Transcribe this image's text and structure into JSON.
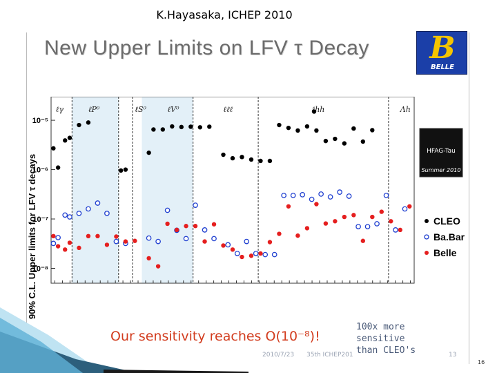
{
  "header": {
    "text": "K.Hayasaka, ICHEP 2010"
  },
  "slide": {
    "title": "New Upper Limits on LFV τ Decay",
    "sensitivity_text": "Our sensitivity reaches O(10⁻⁸)!",
    "note_lines": [
      "100x more",
      "sensitive",
      "than CLEO's"
    ],
    "footer_date": "2010/7/23",
    "footer_conf": "35th ICHEP201",
    "footer_num": "13",
    "page_number": "16"
  },
  "logo": {
    "glyph": "B",
    "name": "BELLE"
  },
  "chart_data": {
    "type": "scatter",
    "ylabel": "90% C.L. Upper limits for LFV τ decays",
    "yscale": "log",
    "ylim": [
      5e-09,
      3e-05
    ],
    "yticks": [
      {
        "value": 1e-05,
        "label": "10⁻⁵"
      },
      {
        "value": 1e-06,
        "label": "10⁻⁶"
      },
      {
        "value": 1e-07,
        "label": "10⁻⁷"
      },
      {
        "value": 1e-08,
        "label": "10⁻⁸"
      }
    ],
    "n_channels": 48,
    "group_labels": [
      {
        "label": "ℓγ",
        "channel": 1
      },
      {
        "label": "ℓP⁰",
        "channel": 8
      },
      {
        "label": "ℓS⁰",
        "channel": 18
      },
      {
        "label": "ℓV⁰",
        "channel": 25
      },
      {
        "label": "ℓℓℓ",
        "channel": 37
      },
      {
        "label": "ℓhh",
        "channel": 56
      },
      {
        "label": "Λh",
        "channel": 75
      }
    ],
    "channel_span": [
      0,
      78
    ],
    "group_dividers": [
      4.5,
      14.5,
      17.5,
      30.5,
      44.5,
      72.5
    ],
    "shaded_ranges": [
      [
        4.5,
        14.5
      ],
      [
        19.5,
        30.5
      ]
    ],
    "series": [
      {
        "name": "CLEO",
        "marker": "filled-black",
        "points": [
          [
            0.5,
            2.7e-06
          ],
          [
            1.5,
            1.1e-06
          ],
          [
            3,
            3.9e-06
          ],
          [
            4,
            4.4e-06
          ],
          [
            6,
            8e-06
          ],
          [
            8,
            9e-06
          ],
          [
            15,
            9.6e-07
          ],
          [
            16,
            1e-06
          ],
          [
            21,
            2.2e-06
          ],
          [
            22,
            6.5e-06
          ],
          [
            24,
            6.5e-06
          ],
          [
            26,
            7.5e-06
          ],
          [
            28,
            7.3e-06
          ],
          [
            30,
            7.4e-06
          ],
          [
            32,
            7.2e-06
          ],
          [
            34,
            7.4e-06
          ],
          [
            37,
            2e-06
          ],
          [
            39,
            1.7e-06
          ],
          [
            41,
            1.8e-06
          ],
          [
            43,
            1.6e-06
          ],
          [
            45,
            1.5e-06
          ],
          [
            47,
            1.5e-06
          ],
          [
            49,
            8e-06
          ],
          [
            51,
            7e-06
          ],
          [
            53,
            6.2e-06
          ],
          [
            55,
            7.5e-06
          ],
          [
            56.5,
            1.5e-05
          ],
          [
            57,
            6.2e-06
          ],
          [
            59,
            3.8e-06
          ],
          [
            61,
            4.2e-06
          ],
          [
            63,
            3.4e-06
          ],
          [
            65,
            6.8e-06
          ],
          [
            67,
            3.7e-06
          ],
          [
            69,
            6.3e-06
          ]
        ]
      },
      {
        "name": "Ba.Bar",
        "marker": "open-blue",
        "points": [
          [
            0.5,
            3.2e-08
          ],
          [
            1.5,
            4.2e-08
          ],
          [
            3,
            1.2e-07
          ],
          [
            4,
            1.1e-07
          ],
          [
            6,
            1.3e-07
          ],
          [
            8,
            1.6e-07
          ],
          [
            10,
            2.1e-07
          ],
          [
            12,
            1.3e-07
          ],
          [
            14,
            3.5e-08
          ],
          [
            16,
            3.2e-08
          ],
          [
            21,
            4.1e-08
          ],
          [
            23,
            3.5e-08
          ],
          [
            25,
            1.5e-07
          ],
          [
            27,
            5.9e-08
          ],
          [
            29,
            4e-08
          ],
          [
            31,
            1.9e-07
          ],
          [
            33,
            6e-08
          ],
          [
            35,
            4e-08
          ],
          [
            38,
            3e-08
          ],
          [
            40,
            2e-08
          ],
          [
            42,
            3.5e-08
          ],
          [
            44,
            2e-08
          ],
          [
            46,
            1.9e-08
          ],
          [
            48,
            1.9e-08
          ],
          [
            50,
            3e-07
          ],
          [
            52,
            3e-07
          ],
          [
            54,
            3.1e-07
          ],
          [
            56,
            2.5e-07
          ],
          [
            58,
            3.2e-07
          ],
          [
            60,
            2.8e-07
          ],
          [
            62,
            3.5e-07
          ],
          [
            64,
            2.9e-07
          ],
          [
            66,
            7e-08
          ],
          [
            68,
            7e-08
          ],
          [
            70,
            8e-08
          ],
          [
            72,
            3e-07
          ],
          [
            74,
            6e-08
          ],
          [
            76,
            1.6e-07
          ]
        ]
      },
      {
        "name": "Belle",
        "marker": "filled-red",
        "points": [
          [
            0.5,
            4.5e-08
          ],
          [
            1.5,
            2.8e-08
          ],
          [
            3,
            2.4e-08
          ],
          [
            4,
            3.3e-08
          ],
          [
            6,
            2.6e-08
          ],
          [
            8,
            4.5e-08
          ],
          [
            10,
            4.5e-08
          ],
          [
            12,
            3e-08
          ],
          [
            14,
            4.4e-08
          ],
          [
            16,
            3.5e-08
          ],
          [
            18,
            3.6e-08
          ],
          [
            21,
            1.6e-08
          ],
          [
            23,
            1.1e-08
          ],
          [
            25,
            8e-08
          ],
          [
            27,
            6e-08
          ],
          [
            29,
            7.2e-08
          ],
          [
            31,
            7.2e-08
          ],
          [
            33,
            3.5e-08
          ],
          [
            35,
            7.8e-08
          ],
          [
            37,
            2.9e-08
          ],
          [
            39,
            2.4e-08
          ],
          [
            41,
            1.7e-08
          ],
          [
            43,
            1.8e-08
          ],
          [
            45,
            2e-08
          ],
          [
            47,
            3.4e-08
          ],
          [
            49,
            5e-08
          ],
          [
            51,
            1.8e-07
          ],
          [
            53,
            4.6e-08
          ],
          [
            55,
            6.5e-08
          ],
          [
            57,
            2e-07
          ],
          [
            59,
            8.1e-08
          ],
          [
            61,
            9e-08
          ],
          [
            63,
            1.1e-07
          ],
          [
            65,
            1.2e-07
          ],
          [
            67,
            3.6e-08
          ],
          [
            69,
            1.1e-07
          ],
          [
            71,
            1.4e-07
          ],
          [
            73,
            9e-08
          ],
          [
            75,
            6e-08
          ],
          [
            77,
            1.8e-07
          ]
        ]
      }
    ],
    "legend": {
      "position": "right",
      "entries": [
        "CLEO",
        "Ba.Bar",
        "Belle"
      ],
      "badge_title": "HFAG-Tau",
      "badge_subtitle": "Summer 2010"
    }
  }
}
